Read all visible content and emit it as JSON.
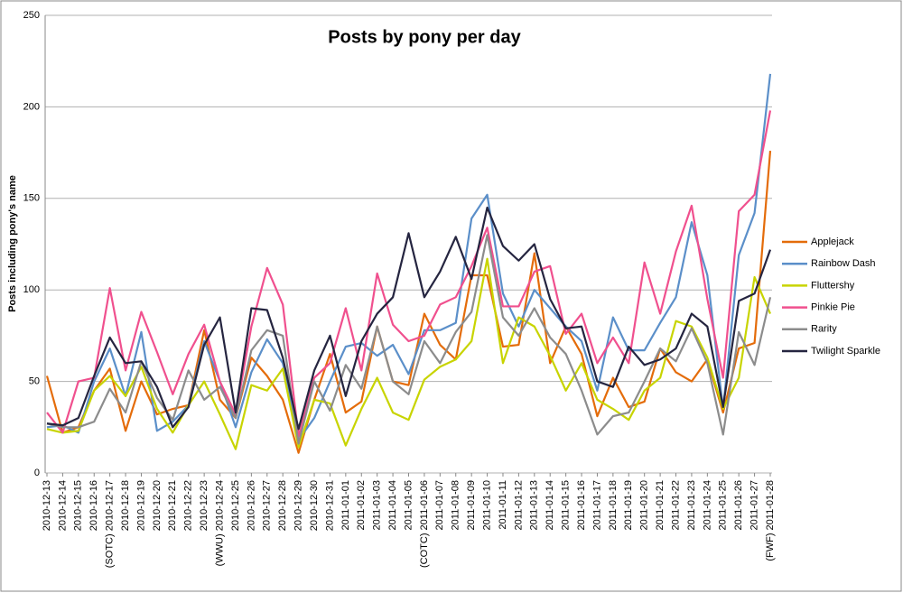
{
  "chart_data": {
    "type": "line",
    "title": "Posts by pony per day",
    "y_label": "Posts including pony's name",
    "categories": [
      "2010-12-13",
      "2010-12-14",
      "2010-12-15",
      "2010-12-16",
      "(SOTC) 2010-12-17",
      "2010-12-18",
      "2010-12-19",
      "2010-12-20",
      "2010-12-21",
      "2010-12-22",
      "2010-12-23",
      "(WWU) 2010-12-24",
      "2010-12-25",
      "2010-12-26",
      "2010-12-27",
      "2010-12-28",
      "2010-12-29",
      "2010-12-30",
      "2010-12-31",
      "2011-01-01",
      "2011-01-02",
      "2011-01-03",
      "2011-01-04",
      "2011-01-05",
      "(COTC) 2011-01-06",
      "2011-01-07",
      "2011-01-08",
      "2011-01-09",
      "2011-01-10",
      "2011-01-11",
      "2011-01-12",
      "2011-01-13",
      "2011-01-14",
      "2011-01-15",
      "2011-01-16",
      "2011-01-17",
      "2011-01-18",
      "2011-01-19",
      "2011-01-20",
      "2011-01-21",
      "2011-01-22",
      "2011-01-23",
      "2011-01-24",
      "2011-01-25",
      "2011-01-26",
      "2011-01-27",
      "(FWF) 2011-01-28"
    ],
    "series": [
      {
        "name": "Applejack",
        "color": "#e46c0a",
        "values": [
          53,
          22,
          25,
          45,
          57,
          23,
          50,
          32,
          35,
          37,
          78,
          40,
          30,
          63,
          53,
          40,
          11,
          40,
          65,
          33,
          39,
          80,
          50,
          48,
          87,
          70,
          62,
          108,
          108,
          69,
          70,
          120,
          60,
          80,
          65,
          31,
          52,
          36,
          39,
          68,
          55,
          50,
          62,
          33,
          68,
          71,
          176
        ]
      },
      {
        "name": "Rainbow Dash",
        "color": "#5b8fc9",
        "values": [
          25,
          26,
          22,
          50,
          68,
          42,
          77,
          23,
          28,
          37,
          72,
          50,
          25,
          55,
          73,
          60,
          18,
          30,
          50,
          69,
          71,
          64,
          70,
          54,
          78,
          78,
          82,
          139,
          152,
          98,
          80,
          100,
          90,
          80,
          72,
          45,
          85,
          67,
          67,
          82,
          96,
          137,
          108,
          35,
          119,
          142,
          218
        ]
      },
      {
        "name": "Fluttershy",
        "color": "#c8d400",
        "values": [
          24,
          22,
          23,
          45,
          53,
          42,
          58,
          35,
          22,
          37,
          50,
          32,
          13,
          48,
          45,
          57,
          14,
          40,
          38,
          15,
          35,
          52,
          33,
          29,
          51,
          58,
          62,
          72,
          117,
          60,
          85,
          80,
          64,
          45,
          60,
          40,
          35,
          29,
          45,
          52,
          83,
          80,
          63,
          35,
          52,
          107,
          87
        ]
      },
      {
        "name": "Pinkie Pie",
        "color": "#f0508e",
        "values": [
          33,
          22,
          50,
          52,
          101,
          56,
          88,
          66,
          43,
          65,
          81,
          50,
          32,
          80,
          112,
          92,
          20,
          52,
          60,
          90,
          56,
          109,
          81,
          72,
          75,
          92,
          96,
          113,
          134,
          91,
          91,
          110,
          113,
          76,
          87,
          60,
          74,
          60,
          115,
          87,
          121,
          146,
          95,
          52,
          143,
          152,
          198
        ]
      },
      {
        "name": "Rarity",
        "color": "#8c8c8c",
        "values": [
          27,
          25,
          25,
          28,
          46,
          33,
          61,
          41,
          29,
          56,
          40,
          47,
          30,
          67,
          78,
          75,
          16,
          50,
          34,
          59,
          46,
          80,
          50,
          43,
          72,
          60,
          77,
          88,
          130,
          85,
          75,
          90,
          74,
          65,
          45,
          21,
          31,
          33,
          50,
          68,
          61,
          79,
          60,
          21,
          77,
          59,
          96
        ]
      },
      {
        "name": "Twilight Sparkle",
        "color": "#252540",
        "values": [
          27,
          26,
          30,
          53,
          74,
          60,
          61,
          47,
          25,
          36,
          70,
          85,
          33,
          90,
          89,
          63,
          24,
          56,
          75,
          42,
          72,
          87,
          96,
          131,
          96,
          110,
          129,
          106,
          145,
          124,
          116,
          125,
          95,
          79,
          80,
          50,
          47,
          69,
          59,
          62,
          68,
          87,
          80,
          36,
          94,
          98,
          122
        ]
      }
    ],
    "ylim": [
      0,
      250
    ],
    "yticks": [
      0,
      50,
      100,
      150,
      200,
      250
    ],
    "grid": true,
    "legend": "right"
  }
}
